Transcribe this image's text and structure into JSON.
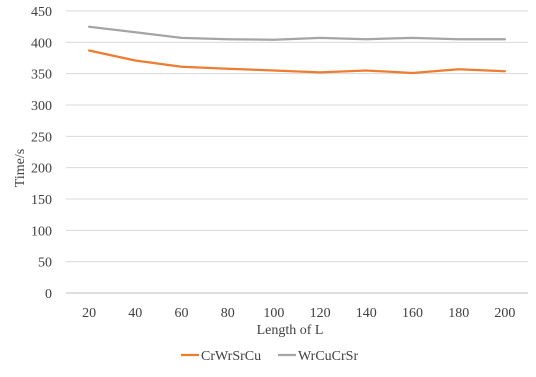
{
  "chart_data": {
    "type": "line",
    "title": "",
    "xlabel": "Length of L",
    "ylabel": "Time/s",
    "x": [
      20,
      40,
      60,
      80,
      100,
      120,
      140,
      160,
      180,
      200
    ],
    "yticks": [
      0,
      50,
      100,
      150,
      200,
      250,
      300,
      350,
      400,
      450
    ],
    "ylim": [
      0,
      450
    ],
    "grid": "horizontal",
    "legend_position": "bottom",
    "series": [
      {
        "name": "CrWrSrCu",
        "color": "#ED7D31",
        "values": [
          387,
          371,
          361,
          358,
          355,
          352,
          355,
          351,
          357,
          354
        ]
      },
      {
        "name": "WrCuCrSr",
        "color": "#A5A5A5",
        "values": [
          425,
          416,
          407,
          405,
          404,
          407,
          405,
          407,
          405,
          405
        ]
      }
    ]
  }
}
